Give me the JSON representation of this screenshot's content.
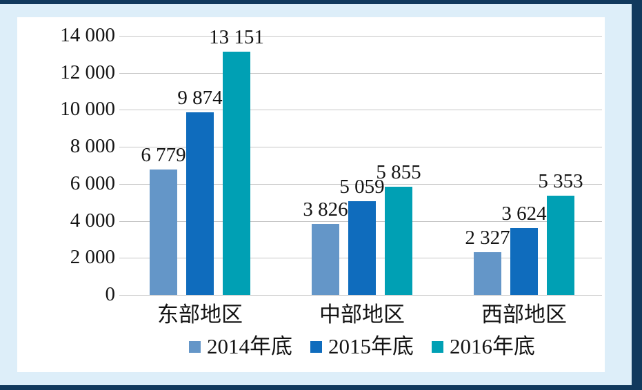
{
  "chart_data": {
    "type": "bar",
    "categories": [
      "东部地区",
      "中部地区",
      "西部地区"
    ],
    "series": [
      {
        "name": "2014年底",
        "color": "#6496C8",
        "values": [
          6779,
          3826,
          2327
        ],
        "value_labels": [
          "6 779",
          "3 826",
          "2 327"
        ]
      },
      {
        "name": "2015年底",
        "color": "#0F6CBD",
        "values": [
          9874,
          5059,
          3624
        ],
        "value_labels": [
          "9 874",
          "5 059",
          "3 624"
        ]
      },
      {
        "name": "2016年底",
        "color": "#00A0B4",
        "values": [
          13151,
          5855,
          5353
        ],
        "value_labels": [
          "13 151",
          "5 855",
          "5 353"
        ]
      }
    ],
    "y_axis": {
      "ylim": [
        0,
        14000
      ],
      "ticks": [
        0,
        2000,
        4000,
        6000,
        8000,
        10000,
        12000,
        14000
      ],
      "tick_labels": [
        "0",
        "2 000",
        "4 000",
        "6 000",
        "8 000",
        "10 000",
        "12 000",
        "14 000"
      ],
      "grid": true
    },
    "legend_position": "bottom"
  },
  "colors": {
    "frame_border": "#11395D",
    "page_background": "#DDEEF9",
    "plot_background": "#FFFFFF",
    "gridline": "#C5C5C5",
    "text": "#141414"
  }
}
